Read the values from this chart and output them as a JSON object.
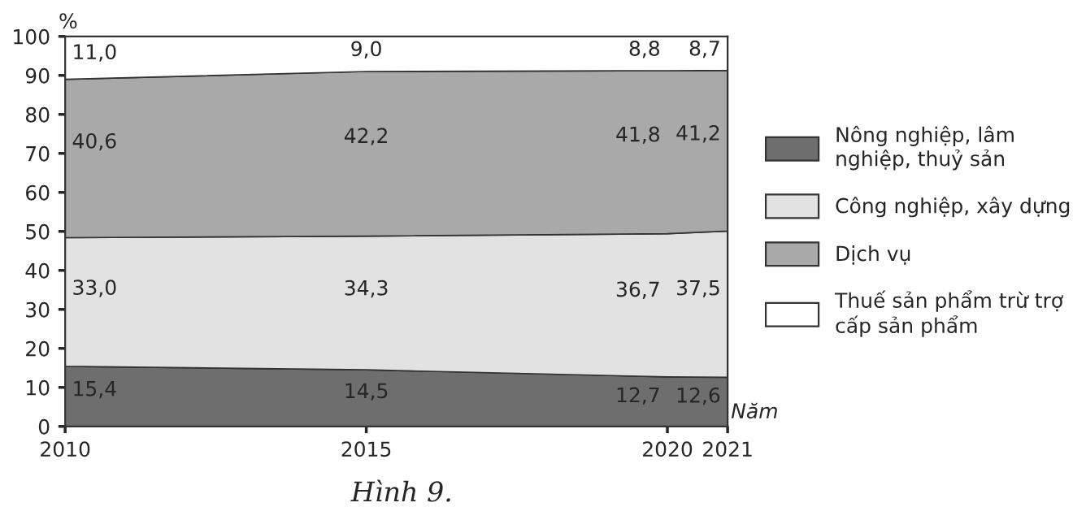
{
  "chart_data": {
    "type": "area",
    "stacked": true,
    "title": "Hình 9.",
    "ylabel": "%",
    "xlabel": "Năm",
    "x": [
      2010,
      2015,
      2020,
      2021
    ],
    "xlim": [
      2010,
      2021
    ],
    "xticks": [
      2010,
      2015,
      2020,
      2021
    ],
    "ylim": [
      0,
      100
    ],
    "yticks": [
      0,
      10,
      20,
      30,
      40,
      50,
      60,
      70,
      80,
      90,
      100
    ],
    "legend": "right",
    "series": [
      {
        "name": "Nông nghiệp, lâm nghiệp, thuỷ sản",
        "color": "#6e6e6e",
        "values": [
          15.4,
          14.5,
          12.7,
          12.6
        ],
        "value_labels": [
          "15,4",
          "14,5",
          "12,7",
          "12,6"
        ]
      },
      {
        "name": "Công nghiệp, xây dựng",
        "color": "#e2e2e2",
        "values": [
          33.0,
          34.3,
          36.7,
          37.5
        ],
        "value_labels": [
          "33,0",
          "34,3",
          "36,7",
          "37,5"
        ]
      },
      {
        "name": "Dịch vụ",
        "color": "#a9a9a9",
        "values": [
          40.6,
          42.2,
          41.8,
          41.2
        ],
        "value_labels": [
          "40,6",
          "42,2",
          "41,8",
          "41,2"
        ]
      },
      {
        "name": "Thuế sản phẩm trừ trợ cấp sản phẩm",
        "color": "#ffffff",
        "values": [
          11.0,
          9.0,
          8.8,
          8.7
        ],
        "value_labels": [
          "11,0",
          "9,0",
          "8,8",
          "8,7"
        ]
      }
    ]
  }
}
